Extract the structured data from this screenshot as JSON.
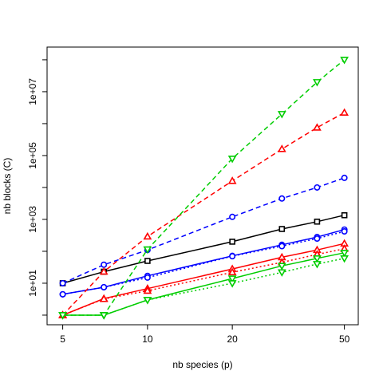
{
  "chart_data": {
    "type": "line",
    "title": "",
    "xlabel": "nb species (p)",
    "ylabel": "nb blocks (C)",
    "x_scale": "log",
    "y_scale": "log",
    "xlim": [
      4.4,
      56
    ],
    "ylim": [
      0.5,
      250000000
    ],
    "x_ticks": [
      {
        "value": 5,
        "label": "5"
      },
      {
        "value": 10,
        "label": "10"
      },
      {
        "value": 20,
        "label": "20"
      },
      {
        "value": 50,
        "label": "50"
      }
    ],
    "y_ticks": [
      {
        "value": 10,
        "label": "1e+01"
      },
      {
        "value": 1000,
        "label": "1e+03"
      },
      {
        "value": 100000,
        "label": "1e+05"
      },
      {
        "value": 10000000,
        "label": "1e+07"
      }
    ],
    "y_minor_ticks": [
      1,
      100,
      10000,
      1000000,
      100000000
    ],
    "grid": false,
    "legend": "none",
    "x": [
      5,
      7,
      10,
      20,
      30,
      40,
      50
    ],
    "series": [
      {
        "color": "#000000",
        "linestyle": "solid",
        "marker": "square",
        "values": [
          10,
          23,
          50,
          200,
          500,
          850,
          1350
        ]
      },
      {
        "color": "#0000ff",
        "linestyle": "dashed",
        "marker": "circle",
        "values": [
          10,
          38,
          110,
          1200,
          4500,
          10000,
          20000
        ]
      },
      {
        "color": "#0000ff",
        "linestyle": "solid",
        "marker": "circle",
        "values": [
          4.5,
          7.5,
          17,
          72,
          160,
          280,
          480
        ]
      },
      {
        "color": "#0000ff",
        "linestyle": "dotted",
        "marker": "circle",
        "values": [
          4.5,
          7.5,
          15,
          70,
          145,
          250,
          420
        ]
      },
      {
        "color": "#ff0000",
        "linestyle": "dashed",
        "marker": "triangle-up",
        "values": [
          1,
          23,
          290,
          16000,
          160000,
          750000,
          2200000
        ]
      },
      {
        "color": "#ff0000",
        "linestyle": "solid",
        "marker": "triangle-up",
        "values": [
          1,
          3.3,
          6.8,
          28,
          65,
          110,
          175
        ]
      },
      {
        "color": "#ff0000",
        "linestyle": "dotted",
        "marker": "triangle-up",
        "values": [
          1,
          3.2,
          5.8,
          22,
          45,
          80,
          120
        ]
      },
      {
        "color": "#00cd00",
        "linestyle": "dashed",
        "marker": "triangle-down",
        "values": [
          1,
          1,
          115,
          80000,
          2000000,
          20000000,
          100000000
        ]
      },
      {
        "color": "#00cd00",
        "linestyle": "solid",
        "marker": "triangle-down",
        "values": [
          1,
          1,
          3,
          14,
          35,
          60,
          90
        ]
      },
      {
        "color": "#00cd00",
        "linestyle": "dotted",
        "marker": "triangle-down",
        "values": [
          1,
          1,
          3,
          10,
          22,
          40,
          60
        ]
      }
    ]
  }
}
